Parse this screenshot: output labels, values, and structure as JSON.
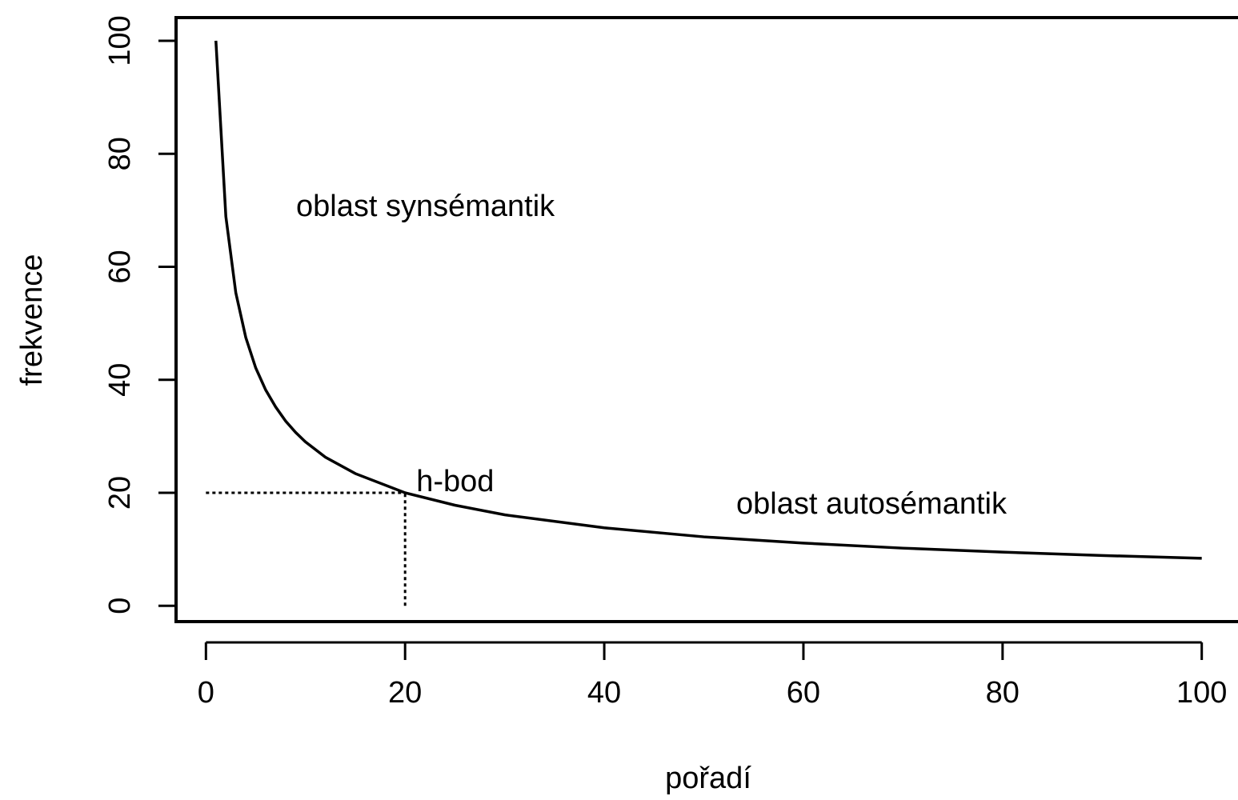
{
  "chart_data": {
    "type": "line",
    "x_label": "pořadí",
    "y_label": "frekvence",
    "x": [
      1,
      2,
      3,
      4,
      5,
      6,
      7,
      8,
      9,
      10,
      12,
      15,
      20,
      25,
      30,
      40,
      50,
      60,
      70,
      80,
      90,
      100
    ],
    "series": [
      {
        "color": "#000000",
        "values": [
          100,
          68.9,
          55.4,
          47.5,
          42.1,
          38.2,
          35.2,
          32.7,
          30.7,
          29.0,
          26.3,
          23.4,
          20.0,
          17.8,
          16.1,
          13.8,
          12.2,
          11.1,
          10.2,
          9.5,
          8.9,
          8.4
        ]
      }
    ],
    "h_point": {
      "x": 20,
      "y": 20,
      "label": "h-bod"
    },
    "annotations": [
      "oblast synsémantik",
      "oblast autosémantik"
    ],
    "xlim": [
      -3,
      103.4
    ],
    "xticks": [
      0,
      20,
      40,
      60,
      80,
      100
    ],
    "ylim": [
      -2.8,
      104.1
    ],
    "yticks": [
      0,
      20,
      40,
      60,
      80,
      100
    ],
    "grid": false
  }
}
